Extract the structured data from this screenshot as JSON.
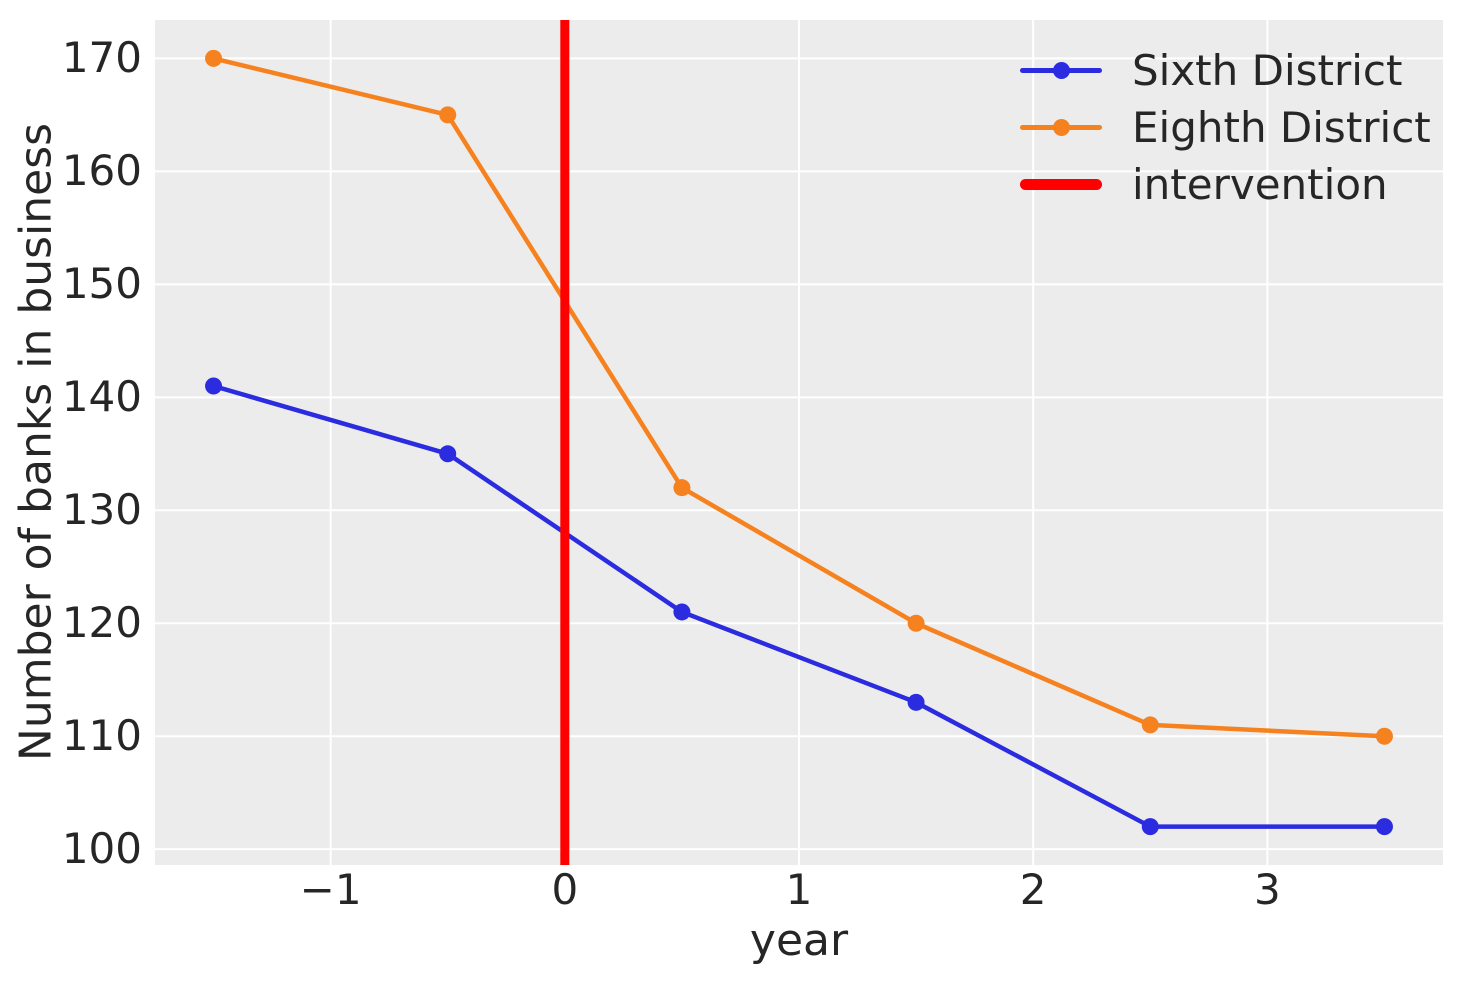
{
  "chart_data": {
    "type": "line",
    "title": "",
    "xlabel": "year",
    "ylabel": "Number of banks in business",
    "x": [
      -1.5,
      -0.5,
      0.5,
      1.5,
      2.5,
      3.5
    ],
    "series": [
      {
        "name": "Sixth District",
        "color": "#2b2bdf",
        "values": [
          141,
          135,
          121,
          113,
          102,
          102
        ]
      },
      {
        "name": "Eighth District",
        "color": "#f5821f",
        "values": [
          170,
          165,
          132,
          120,
          111,
          110
        ]
      }
    ],
    "intervention_line": {
      "label": "intervention",
      "x": 0,
      "color": "#ff0000"
    },
    "xlim": [
      -1.75,
      3.75
    ],
    "ylim": [
      98.6,
      173.4
    ],
    "xticks": [
      -1,
      0,
      1,
      2,
      3
    ],
    "yticks": [
      100,
      110,
      120,
      130,
      140,
      150,
      160,
      170
    ],
    "grid": true,
    "legend_position": "upper right",
    "colors": {
      "figure_background": "#ffffff",
      "plot_background": "#ececec",
      "gridline": "#ffffff",
      "text": "#262626"
    }
  }
}
